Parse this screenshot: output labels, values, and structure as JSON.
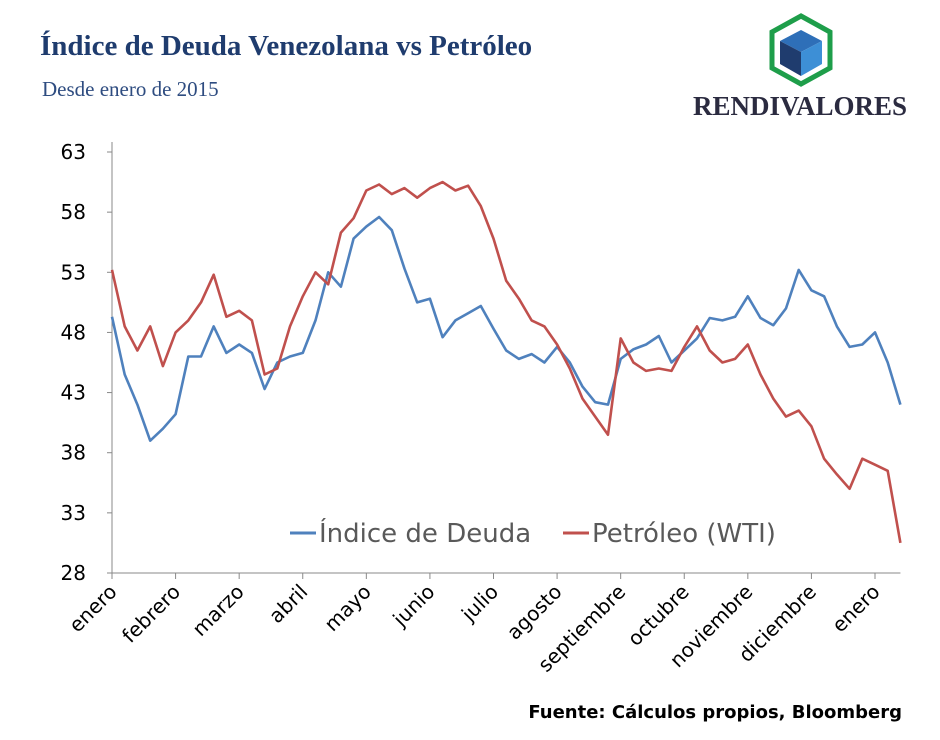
{
  "brand": "RENDIVALORES",
  "chart_data": {
    "type": "line",
    "title": "Índice de Deuda Venezolana vs Petróleo",
    "subtitle": "Desde enero de 2015",
    "source": "Fuente: Cálculos propios, Bloomberg",
    "categories": [
      "enero",
      null,
      null,
      null,
      null,
      "febrero",
      null,
      null,
      null,
      null,
      "marzo",
      null,
      null,
      null,
      null,
      "abril",
      null,
      null,
      null,
      null,
      "mayo",
      null,
      null,
      null,
      null,
      "junio",
      null,
      null,
      null,
      null,
      "julio",
      null,
      null,
      null,
      null,
      "agosto",
      null,
      null,
      null,
      null,
      "septiembre",
      null,
      null,
      null,
      null,
      "octubre",
      null,
      null,
      null,
      null,
      "noviembre",
      null,
      null,
      null,
      null,
      "diciembre",
      null,
      null,
      null,
      null,
      "enero",
      null,
      null
    ],
    "series": [
      {
        "name": "Índice de Deuda",
        "color": "#4f81bd",
        "values": [
          49.3,
          44.5,
          42,
          39,
          40,
          41.2,
          46,
          46,
          48.5,
          46.3,
          47,
          46.3,
          43.3,
          45.5,
          46,
          46.3,
          49,
          53,
          51.8,
          55.8,
          56.8,
          57.6,
          56.5,
          53.3,
          50.5,
          50.8,
          47.6,
          49,
          49.6,
          50.2,
          48.3,
          46.5,
          45.8,
          46.2,
          45.5,
          46.8,
          45.5,
          43.5,
          42.2,
          42,
          45.8,
          46.6,
          47,
          47.7,
          45.5,
          46.5,
          47.5,
          49.2,
          49,
          49.3,
          51,
          49.2,
          48.6,
          50,
          53.2,
          51.5,
          51,
          48.5,
          46.8,
          47,
          48,
          45.5,
          42
        ]
      },
      {
        "name": "Petróleo (WTI)",
        "color": "#c0504d",
        "values": [
          53.2,
          48.5,
          46.5,
          48.5,
          45.2,
          48,
          49,
          50.5,
          52.8,
          49.3,
          49.8,
          49,
          44.5,
          45,
          48.5,
          51,
          53,
          52,
          56.3,
          57.5,
          59.8,
          60.3,
          59.5,
          60,
          59.2,
          60,
          60.5,
          59.8,
          60.2,
          58.5,
          55.8,
          52.3,
          50.8,
          49,
          48.5,
          47,
          45,
          42.5,
          41,
          39.5,
          47.5,
          45.5,
          44.8,
          45,
          44.8,
          46.8,
          48.5,
          46.5,
          45.5,
          45.8,
          47,
          44.5,
          42.5,
          41,
          41.5,
          40.2,
          37.5,
          36.2,
          35,
          37.5,
          37,
          36.5,
          30.5
        ]
      }
    ],
    "ylim": [
      28,
      63
    ],
    "yticks": [
      28,
      33,
      38,
      43,
      48,
      53,
      58,
      63
    ],
    "grid": false,
    "legend": "bottom"
  }
}
